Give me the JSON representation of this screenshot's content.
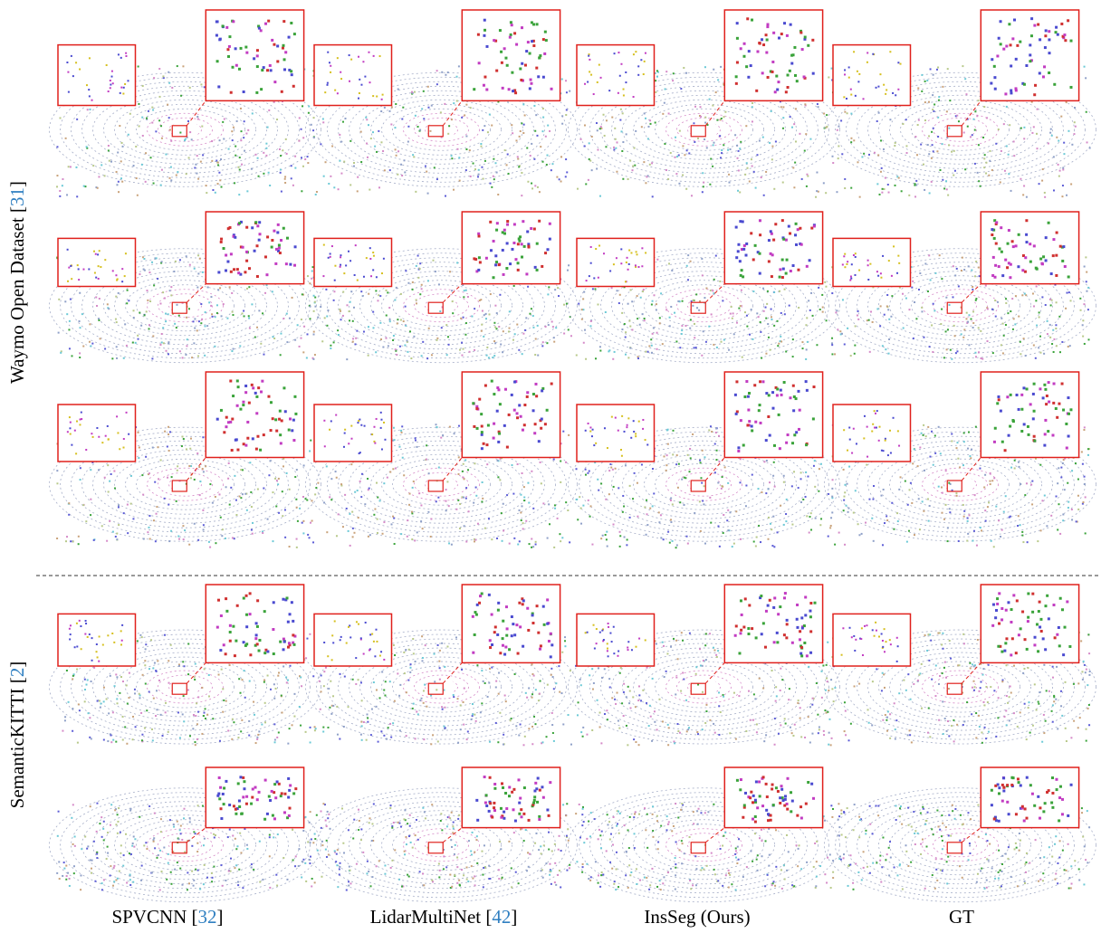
{
  "figure": {
    "row_labels": [
      {
        "parts": [
          "Waymo Open Dataset [",
          "31",
          "]"
        ]
      },
      {
        "parts": [
          "SemanticKITTI [",
          "2",
          "]"
        ]
      }
    ],
    "column_labels": [
      {
        "parts": [
          "SPVCNN [",
          "32",
          "]"
        ]
      },
      {
        "parts": [
          "LidarMultiNet [",
          "42",
          "]"
        ]
      },
      {
        "parts": [
          "InsSeg (Ours)"
        ]
      },
      {
        "parts": [
          "GT"
        ]
      }
    ]
  }
}
